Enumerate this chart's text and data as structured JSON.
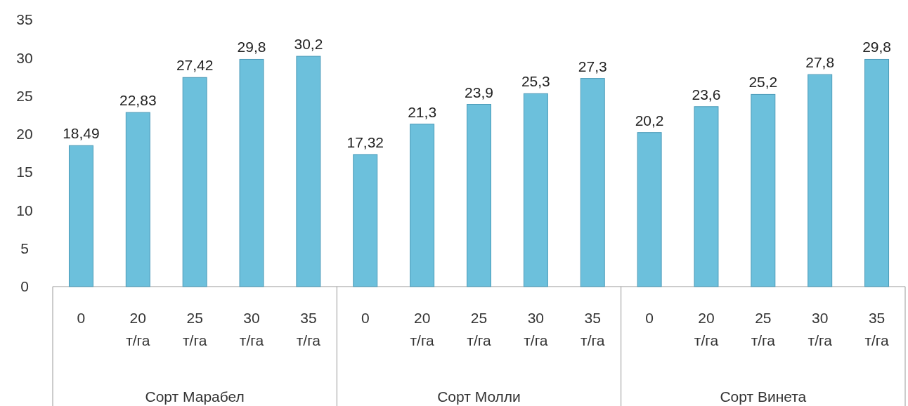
{
  "chart_data": {
    "type": "bar",
    "categories": [
      "0",
      "20 т/га",
      "25 т/га",
      "30 т/га",
      "35 т/га",
      "0",
      "20 т/га",
      "25 т/га",
      "30 т/га",
      "35 т/га",
      "0",
      "20 т/га",
      "25 т/га",
      "30 т/га",
      "35 т/га"
    ],
    "values": [
      18.49,
      22.83,
      27.42,
      29.8,
      30.2,
      17.32,
      21.3,
      23.9,
      25.3,
      27.3,
      20.2,
      23.6,
      25.2,
      27.8,
      29.8
    ],
    "color": "#6cc0dc",
    "ylim": [
      0,
      35
    ],
    "yticks": [
      0,
      5,
      10,
      15,
      20,
      25,
      30,
      35
    ],
    "data_labels": true,
    "value_labels": [
      "18,49",
      "22,83",
      "27,42",
      "29,8",
      "30,2",
      "17,32",
      "21,3",
      "23,9",
      "25,3",
      "27,3",
      "20,2",
      "23,6",
      "25,2",
      "27,8",
      "29,8"
    ],
    "annotations": [
      "Сорт Марабел",
      "Сорт Молли",
      "Сорт Винета"
    ]
  }
}
